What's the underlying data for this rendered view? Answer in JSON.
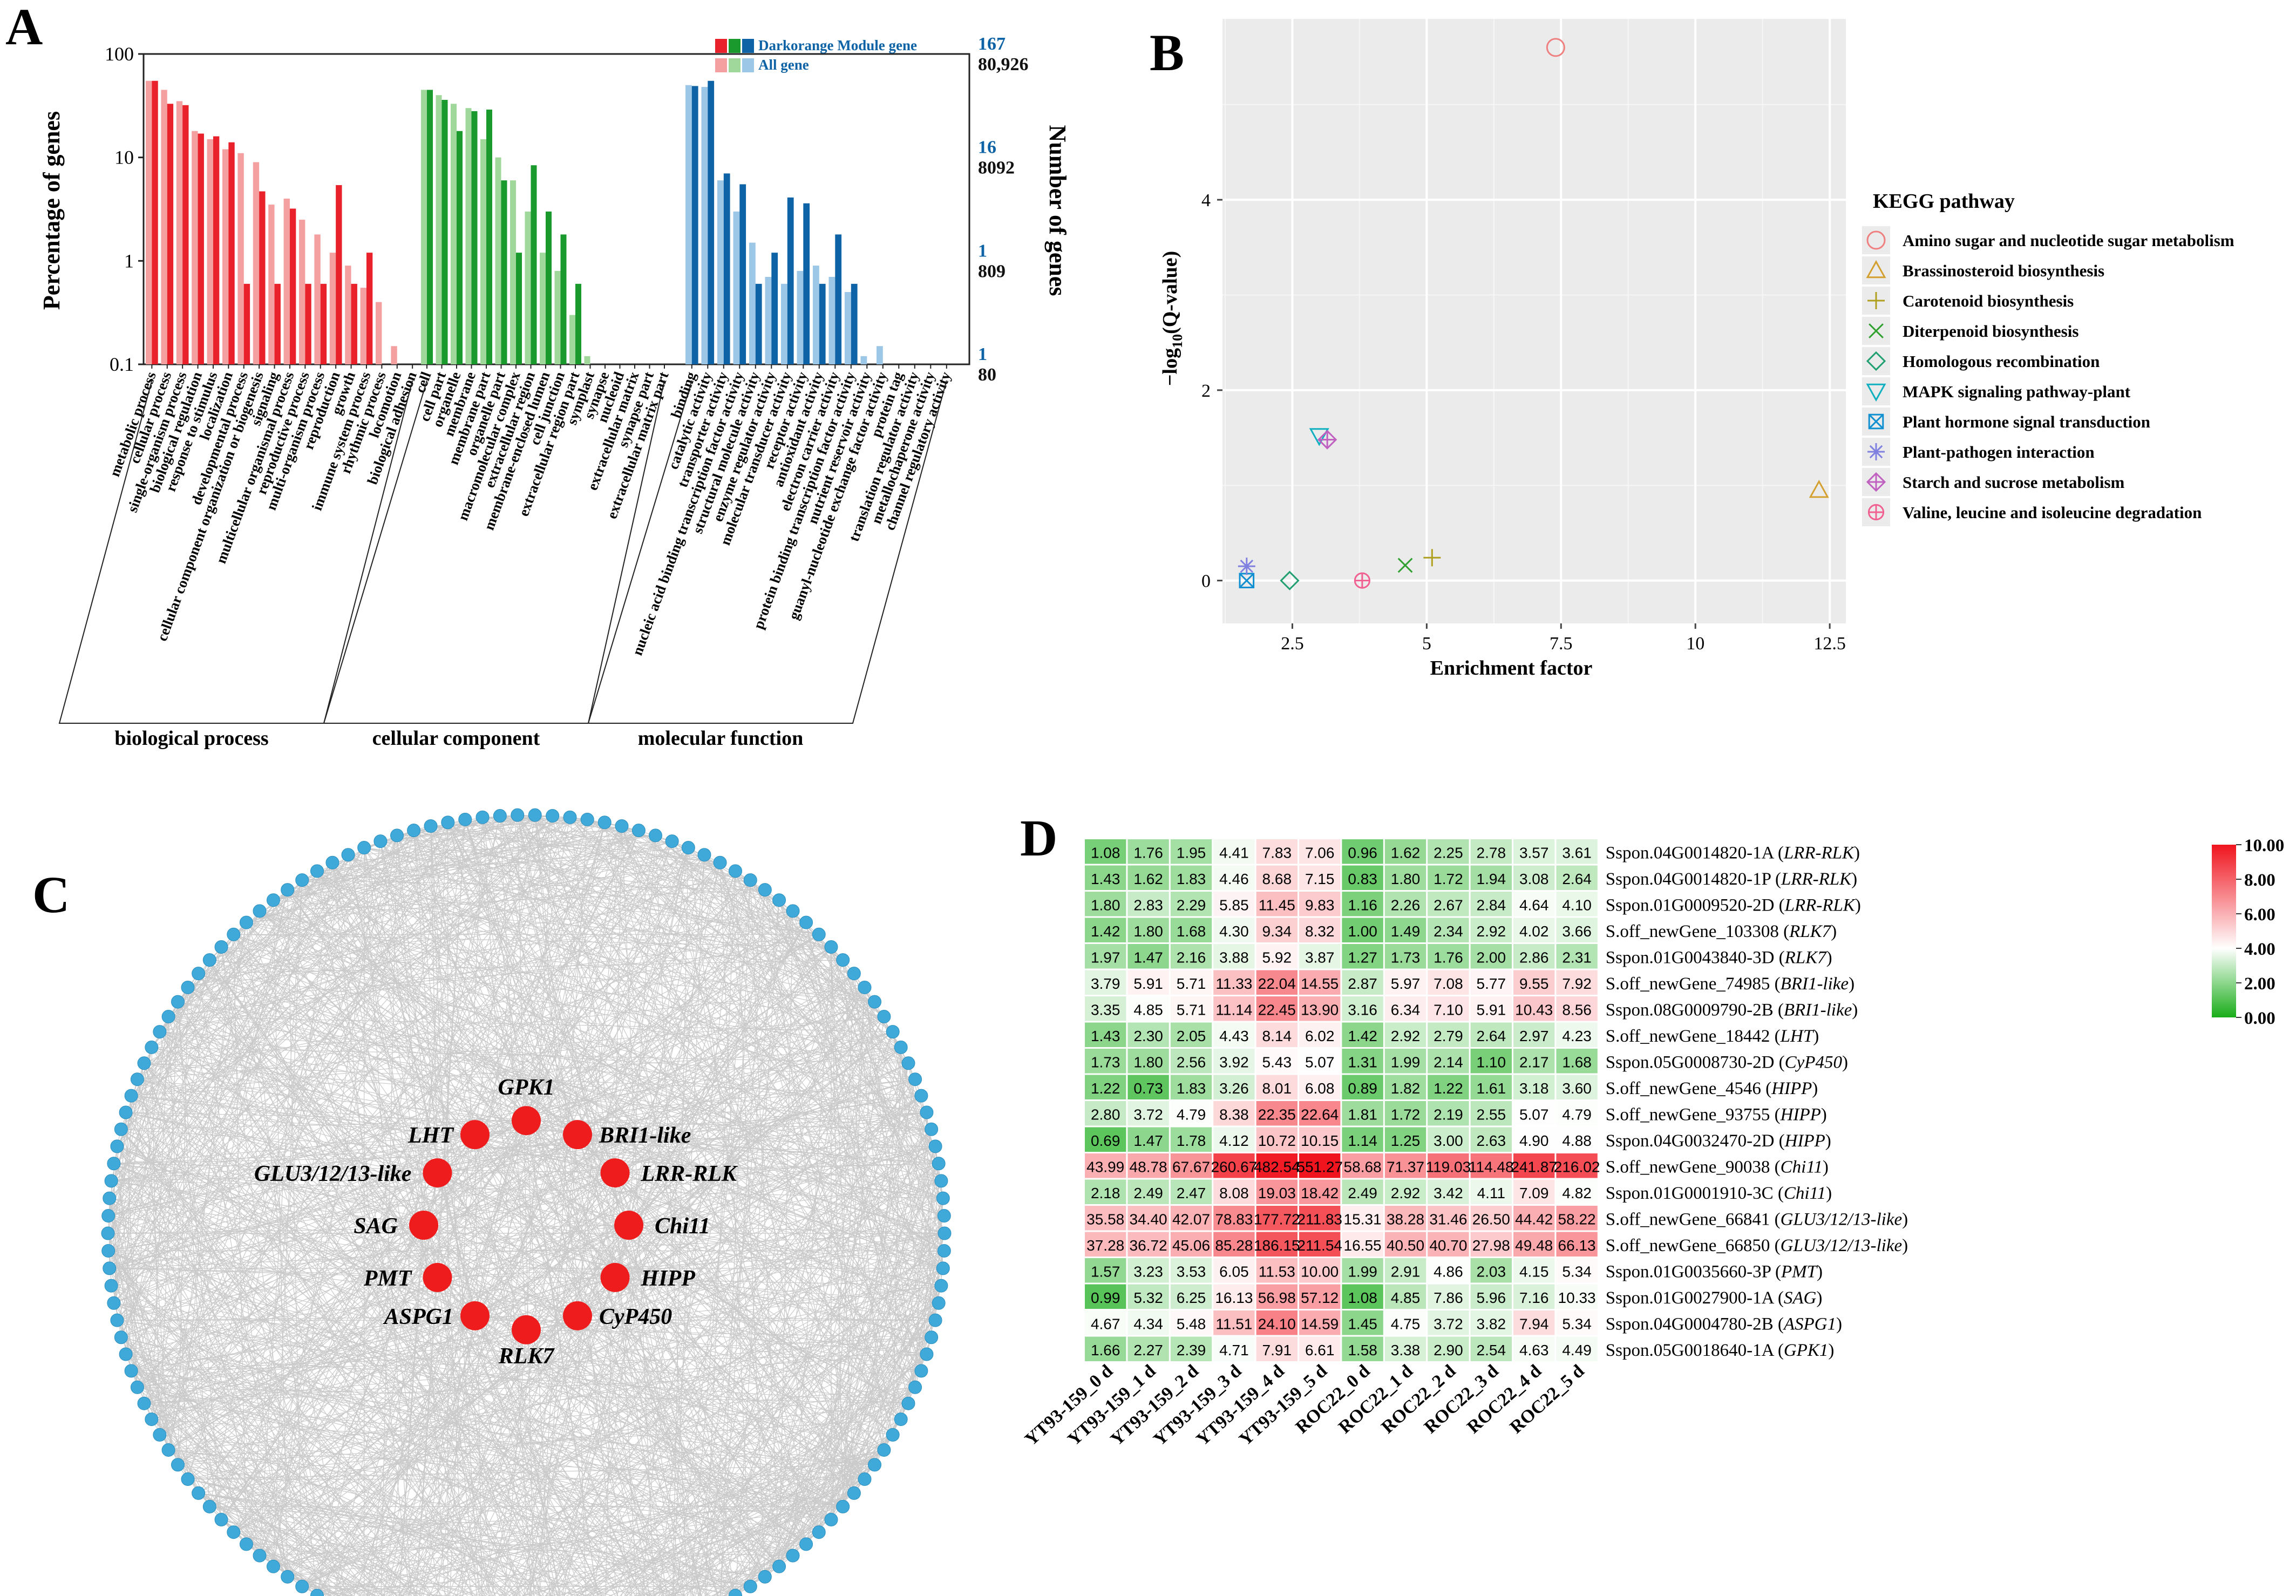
{
  "panels": {
    "A": "A",
    "B": "B",
    "C": "C",
    "D": "D"
  },
  "colors": {
    "bp_dark": "#e8212a",
    "bp_light": "#f4a0a0",
    "cc_dark": "#1a9a2c",
    "cc_light": "#9fd89a",
    "mf_dark": "#0d63a5",
    "mf_light": "#9cc7e6",
    "hub_node": "#ee1c1c",
    "outer_node": "#3fa9d9",
    "edge": "#9e9e9e",
    "heat_low": "#19ad19",
    "heat_mid": "#ffffff",
    "heat_high": "#f0141e",
    "plot_bg": "#ebebeb"
  },
  "chart_data": [
    {
      "id": "A",
      "type": "bar",
      "ylabel_left": "Percentage of genes",
      "ylabel_right": "Number of genes",
      "yscale": "log",
      "ylim": [
        0.1,
        100
      ],
      "left_ticks": [
        "100",
        "10",
        "1",
        "0.1"
      ],
      "right_ticks": [
        {
          "module": "167",
          "all": "80,926"
        },
        {
          "module": "16",
          "all": "8092"
        },
        {
          "module": "1",
          "all": "809"
        },
        {
          "module": "1",
          "all": "80"
        }
      ],
      "legend": {
        "module": "Darkorange Module gene",
        "all": "All gene"
      },
      "groups": [
        {
          "name": "biological process",
          "color_key": "bp",
          "categories": [
            "metabolic process",
            "cellular process",
            "single-organism process",
            "biological regulation",
            "response to stimulus",
            "localization",
            "developmental process",
            "cellular component organization or biogenesis",
            "signaling",
            "multicellular organismal process",
            "reproductive process",
            "multi-organism process",
            "reproduction",
            "growth",
            "immune system process",
            "rhythmic process",
            "locomotion",
            "biological adhesion"
          ],
          "all": [
            55,
            45,
            35,
            18,
            15,
            12,
            11,
            9,
            3.5,
            4,
            2.5,
            1.8,
            1.2,
            0.9,
            0.55,
            0.4,
            0.15,
            null
          ],
          "module": [
            55,
            33,
            32,
            17,
            16,
            14,
            0.6,
            4.7,
            0.6,
            3.2,
            0.6,
            0.6,
            5.4,
            0.6,
            1.2,
            null,
            null,
            null
          ]
        },
        {
          "name": "cellular component",
          "color_key": "cc",
          "categories": [
            "cell",
            "cell part",
            "organelle",
            "membrane",
            "membrane part",
            "organelle part",
            "macromolecular complex",
            "extracellular region",
            "membrane-enclosed lumen",
            "cell junction",
            "extracellular region part",
            "symplast",
            "synapse",
            "nucleoid",
            "extracellular matrix",
            "synapse part",
            "extracellular matrix part"
          ],
          "all": [
            45,
            40,
            33,
            30,
            15,
            10,
            6,
            3,
            1.2,
            0.8,
            0.3,
            0.12,
            null,
            null,
            null,
            null,
            null
          ],
          "module": [
            45,
            36,
            18,
            28,
            29,
            6,
            1.2,
            8.4,
            3,
            1.8,
            0.6,
            null,
            null,
            null,
            null,
            null,
            null
          ]
        },
        {
          "name": "molecular function",
          "color_key": "mf",
          "categories": [
            "binding",
            "catalytic activity",
            "transporter activity",
            "nucleic acid binding transcription factor activity",
            "structural molecule activity",
            "enzyme regulator activity",
            "molecular transducer activity",
            "receptor activity",
            "antioxidant activity",
            "electron carrier activity",
            "protein binding transcription factor activity",
            "nutrient reservoir activity",
            "guanyl-nucleotide exchange factor activity",
            "protein tag",
            "translation regulator activity",
            "metallochaperone activity",
            "channel regulatory activity"
          ],
          "all": [
            50,
            48,
            6,
            3,
            1.5,
            0.7,
            0.6,
            0.8,
            0.9,
            0.7,
            0.5,
            0.12,
            0.15,
            null,
            null,
            null,
            null
          ],
          "module": [
            49,
            55,
            7,
            5.5,
            0.6,
            1.2,
            4.1,
            3.6,
            0.6,
            1.8,
            0.6,
            null,
            null,
            null,
            null,
            null,
            null
          ]
        }
      ]
    },
    {
      "id": "B",
      "type": "scatter",
      "xlabel": "Enrichment factor",
      "xlim": [
        1.2,
        12.8
      ],
      "ylim": [
        -0.45,
        5.9
      ],
      "xticks": [
        2.5,
        5,
        7.5,
        10,
        12.5
      ],
      "yticks": [
        0,
        2,
        4
      ],
      "grid": true,
      "legend_title": "KEGG pathway",
      "legend_position": "right",
      "points": [
        {
          "name": "Amino sugar and nucleotide sugar metabolism",
          "x": 7.4,
          "y": 5.6,
          "marker": "circle",
          "color": "#f08080"
        },
        {
          "name": "Brassinosteroid biosynthesis",
          "x": 12.3,
          "y": 0.95,
          "marker": "triangle",
          "color": "#d4a030"
        },
        {
          "name": "Carotenoid biosynthesis",
          "x": 5.1,
          "y": 0.24,
          "marker": "plus",
          "color": "#b0a020"
        },
        {
          "name": "Diterpenoid biosynthesis",
          "x": 4.6,
          "y": 0.16,
          "marker": "cross",
          "color": "#30a030"
        },
        {
          "name": "Homologous recombination",
          "x": 2.45,
          "y": 0.0,
          "marker": "diamond",
          "color": "#20a070"
        },
        {
          "name": "MAPK signaling pathway-plant",
          "x": 3.0,
          "y": 1.52,
          "marker": "triangle-down",
          "color": "#10b0c0"
        },
        {
          "name": "Plant hormone signal transduction",
          "x": 1.65,
          "y": 0.0,
          "marker": "square-x",
          "color": "#1090d0"
        },
        {
          "name": "Plant-pathogen interaction",
          "x": 1.65,
          "y": 0.15,
          "marker": "asterisk",
          "color": "#8080e0"
        },
        {
          "name": "Starch and sucrose metabolism",
          "x": 3.15,
          "y": 1.48,
          "marker": "diamond-plus",
          "color": "#c060c0"
        },
        {
          "name": "Valine, leucine and isoleucine degradation",
          "x": 3.8,
          "y": 0.0,
          "marker": "circle-plus",
          "color": "#f06090"
        }
      ]
    },
    {
      "id": "D",
      "type": "heatmap",
      "columns": [
        "YT93-159_0 d",
        "YT93-159_1 d",
        "YT93-159_2 d",
        "YT93-159_3 d",
        "YT93-159_4 d",
        "YT93-159_5 d",
        "ROC22_0 d",
        "ROC22_1 d",
        "ROC22_2 d",
        "ROC22_3 d",
        "ROC22_4 d",
        "ROC22_5 d"
      ],
      "colorbar_ticks": [
        "10.00",
        "8.00",
        "6.00",
        "4.00",
        "2.00",
        "0.00"
      ],
      "colorbar_range": [
        0,
        10
      ],
      "rows": [
        {
          "id": "Sspon.04G0014820-1A",
          "gene": "LRR-RLK",
          "values": [
            "1.08",
            "1.76",
            "1.95",
            "4.41",
            "7.83",
            "7.06",
            "0.96",
            "1.62",
            "2.25",
            "2.78",
            "3.57",
            "3.61"
          ]
        },
        {
          "id": "Sspon.04G0014820-1P",
          "gene": "LRR-RLK",
          "values": [
            "1.43",
            "1.62",
            "1.83",
            "4.46",
            "8.68",
            "7.15",
            "0.83",
            "1.80",
            "1.72",
            "1.94",
            "3.08",
            "2.64"
          ]
        },
        {
          "id": "Sspon.01G0009520-2D",
          "gene": "LRR-RLK",
          "values": [
            "1.80",
            "2.83",
            "2.29",
            "5.85",
            "11.45",
            "9.83",
            "1.16",
            "2.26",
            "2.67",
            "2.84",
            "4.64",
            "4.10"
          ]
        },
        {
          "id": "S.off_newGene_103308",
          "gene": "RLK7",
          "values": [
            "1.42",
            "1.80",
            "1.68",
            "4.30",
            "9.34",
            "8.32",
            "1.00",
            "1.49",
            "2.34",
            "2.92",
            "4.02",
            "3.66"
          ]
        },
        {
          "id": "Sspon.01G0043840-3D",
          "gene": "RLK7",
          "values": [
            "1.97",
            "1.47",
            "2.16",
            "3.88",
            "5.92",
            "3.87",
            "1.27",
            "1.73",
            "1.76",
            "2.00",
            "2.86",
            "2.31"
          ]
        },
        {
          "id": "S.off_newGene_74985",
          "gene": "BRI1-like",
          "values": [
            "3.79",
            "5.91",
            "5.71",
            "11.33",
            "22.04",
            "14.55",
            "2.87",
            "5.97",
            "7.08",
            "5.77",
            "9.55",
            "7.92"
          ]
        },
        {
          "id": "Sspon.08G0009790-2B",
          "gene": "BRI1-like",
          "values": [
            "3.35",
            "4.85",
            "5.71",
            "11.14",
            "22.45",
            "13.90",
            "3.16",
            "6.34",
            "7.10",
            "5.91",
            "10.43",
            "8.56"
          ]
        },
        {
          "id": "S.off_newGene_18442",
          "gene": "LHT",
          "values": [
            "1.43",
            "2.30",
            "2.05",
            "4.43",
            "8.14",
            "6.02",
            "1.42",
            "2.92",
            "2.79",
            "2.64",
            "2.97",
            "4.23"
          ]
        },
        {
          "id": "Sspon.05G0008730-2D",
          "gene": "CyP450",
          "values": [
            "1.73",
            "1.80",
            "2.56",
            "3.92",
            "5.43",
            "5.07",
            "1.31",
            "1.99",
            "2.14",
            "1.10",
            "2.17",
            "1.68"
          ]
        },
        {
          "id": "S.off_newGene_4546",
          "gene": "HIPP",
          "values": [
            "1.22",
            "0.73",
            "1.83",
            "3.26",
            "8.01",
            "6.08",
            "0.89",
            "1.82",
            "1.22",
            "1.61",
            "3.18",
            "3.60"
          ]
        },
        {
          "id": "S.off_newGene_93755",
          "gene": "HIPP",
          "values": [
            "2.80",
            "3.72",
            "4.79",
            "8.38",
            "22.35",
            "22.64",
            "1.81",
            "1.72",
            "2.19",
            "2.55",
            "5.07",
            "4.79"
          ]
        },
        {
          "id": "Sspon.04G0032470-2D",
          "gene": "HIPP",
          "values": [
            "0.69",
            "1.47",
            "1.78",
            "4.12",
            "10.72",
            "10.15",
            "1.14",
            "1.25",
            "3.00",
            "2.63",
            "4.90",
            "4.88"
          ]
        },
        {
          "id": "S.off_newGene_90038",
          "gene": "Chi11",
          "values": [
            "43.99",
            "48.78",
            "67.67",
            "260.67",
            "482.54",
            "551.27",
            "58.68",
            "71.37",
            "119.03",
            "114.48",
            "241.87",
            "216.02"
          ]
        },
        {
          "id": "Sspon.01G0001910-3C",
          "gene": "Chi11",
          "values": [
            "2.18",
            "2.49",
            "2.47",
            "8.08",
            "19.03",
            "18.42",
            "2.49",
            "2.92",
            "3.42",
            "4.11",
            "7.09",
            "4.82"
          ]
        },
        {
          "id": "S.off_newGene_66841",
          "gene": "GLU3/12/13-like",
          "values": [
            "35.58",
            "34.40",
            "42.07",
            "78.83",
            "177.72",
            "211.83",
            "15.31",
            "38.28",
            "31.46",
            "26.50",
            "44.42",
            "58.22"
          ]
        },
        {
          "id": "S.off_newGene_66850",
          "gene": "GLU3/12/13-like",
          "values": [
            "37.28",
            "36.72",
            "45.06",
            "85.28",
            "186.15",
            "211.54",
            "16.55",
            "40.50",
            "40.70",
            "27.98",
            "49.48",
            "66.13"
          ]
        },
        {
          "id": "Sspon.01G0035660-3P",
          "gene": "PMT",
          "values": [
            "1.57",
            "3.23",
            "3.53",
            "6.05",
            "11.53",
            "10.00",
            "1.99",
            "2.91",
            "4.86",
            "2.03",
            "4.15",
            "5.34"
          ]
        },
        {
          "id": "Sspon.01G0027900-1A",
          "gene": "SAG",
          "values": [
            "0.99",
            "5.32",
            "6.25",
            "16.13",
            "56.98",
            "57.12",
            "1.08",
            "4.85",
            "7.86",
            "5.96",
            "7.16",
            "10.33"
          ]
        },
        {
          "id": "Sspon.04G0004780-2B",
          "gene": "ASPG1",
          "values": [
            "4.67",
            "4.34",
            "5.48",
            "11.51",
            "24.10",
            "14.59",
            "1.45",
            "4.75",
            "3.72",
            "3.82",
            "7.94",
            "5.34"
          ]
        },
        {
          "id": "Sspon.05G0018640-1A",
          "gene": "GPK1",
          "values": [
            "1.66",
            "2.27",
            "2.39",
            "4.71",
            "7.91",
            "6.61",
            "1.58",
            "3.38",
            "2.90",
            "2.54",
            "4.63",
            "4.49"
          ]
        }
      ]
    }
  ],
  "network": {
    "hub_genes": [
      "GPK1",
      "BRI1-like",
      "LRR-RLK",
      "Chi11",
      "HIPP",
      "CyP450",
      "RLK7",
      "ASPG1",
      "PMT",
      "SAG",
      "GLU3/12/13-like",
      "LHT"
    ],
    "outer_node_count": 150
  }
}
